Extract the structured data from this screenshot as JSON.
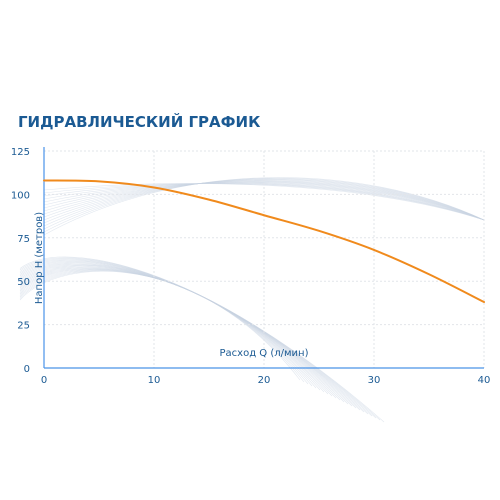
{
  "chart_data": {
    "type": "line",
    "title": "ГИДРАВЛИЧЕСКИЙ ГРАФИК",
    "xlabel": "Расход Q (л/мин)",
    "ylabel": "Напор H (метров)",
    "xlim": [
      0,
      40
    ],
    "ylim": [
      0,
      125
    ],
    "xticks": [
      0,
      10,
      20,
      30,
      40
    ],
    "yticks": [
      0,
      25,
      50,
      75,
      100,
      125
    ],
    "grid": true,
    "legend": "none",
    "series": [
      {
        "color": "#f08a1c",
        "x": [
          0,
          5,
          10,
          15,
          20,
          25,
          30,
          35,
          40
        ],
        "y": [
          108,
          107.5,
          104,
          97,
          88,
          79,
          68,
          54,
          38
        ]
      }
    ],
    "colors": {
      "title": "#1b5a93",
      "axis": "#4a93e8",
      "text": "#1b5a93",
      "grid": "#e2e5ea",
      "series": "#f08a1c"
    }
  }
}
